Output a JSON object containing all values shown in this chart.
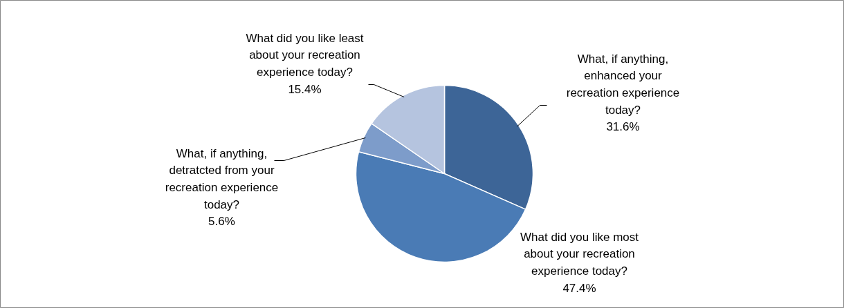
{
  "chart_data": {
    "type": "pie",
    "categories": [
      "What, if anything, enhanced your recreation experience today?",
      "What did you like most about your recreation experience today?",
      "What, if anything, detratcted from your recreation experience today?",
      "What did you like least about your recreation experience today?"
    ],
    "values": [
      31.6,
      47.4,
      5.6,
      15.4
    ],
    "colors": [
      "#3d6597",
      "#4a7bb5",
      "#7d9cca",
      "#b5c4df"
    ],
    "value_labels": [
      "31.6%",
      "47.4%",
      "5.6%",
      "15.4%"
    ]
  }
}
